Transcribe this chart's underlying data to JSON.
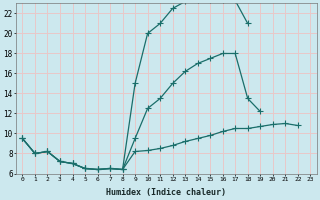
{
  "xlabel": "Humidex (Indice chaleur)",
  "bg_color": "#cce8ee",
  "grid_color": "#e8c8c8",
  "line_color": "#1a6e6a",
  "xlim": [
    -0.5,
    23.5
  ],
  "ylim": [
    6,
    23
  ],
  "xticks": [
    0,
    1,
    2,
    3,
    4,
    5,
    6,
    7,
    8,
    9,
    10,
    11,
    12,
    13,
    14,
    15,
    16,
    17,
    18,
    19,
    20,
    21,
    22,
    23
  ],
  "yticks": [
    6,
    8,
    10,
    12,
    14,
    16,
    18,
    20,
    22
  ],
  "curve1_x": [
    0,
    1,
    2,
    3,
    4,
    5,
    6,
    7,
    8,
    9,
    10,
    11,
    12,
    13,
    14,
    15,
    16,
    17,
    18
  ],
  "curve1_y": [
    9.5,
    8.0,
    8.2,
    7.2,
    7.0,
    6.5,
    6.4,
    6.5,
    6.4,
    15.0,
    20.0,
    21.0,
    22.5,
    23.2,
    23.3,
    23.3,
    23.3,
    23.3,
    21.0
  ],
  "curve2_x": [
    0,
    1,
    2,
    3,
    4,
    5,
    6,
    7,
    8,
    9,
    10,
    11,
    12,
    13,
    14,
    15,
    16,
    17,
    18,
    19,
    20
  ],
  "curve2_y": [
    9.5,
    8.0,
    8.2,
    7.2,
    7.0,
    6.5,
    6.4,
    6.5,
    6.4,
    9.5,
    12.5,
    13.5,
    15.0,
    16.2,
    17.0,
    17.5,
    18.0,
    18.0,
    13.5,
    12.2,
    null
  ],
  "curve3_x": [
    0,
    1,
    2,
    3,
    4,
    5,
    6,
    7,
    8,
    9,
    10,
    11,
    12,
    13,
    14,
    15,
    16,
    17,
    18,
    19,
    20,
    21,
    22
  ],
  "curve3_y": [
    9.5,
    8.0,
    8.2,
    7.2,
    7.0,
    6.5,
    6.4,
    6.5,
    6.4,
    8.2,
    8.3,
    8.5,
    8.8,
    9.2,
    9.5,
    9.8,
    10.2,
    10.5,
    10.5,
    10.7,
    10.9,
    11.0,
    10.8
  ]
}
